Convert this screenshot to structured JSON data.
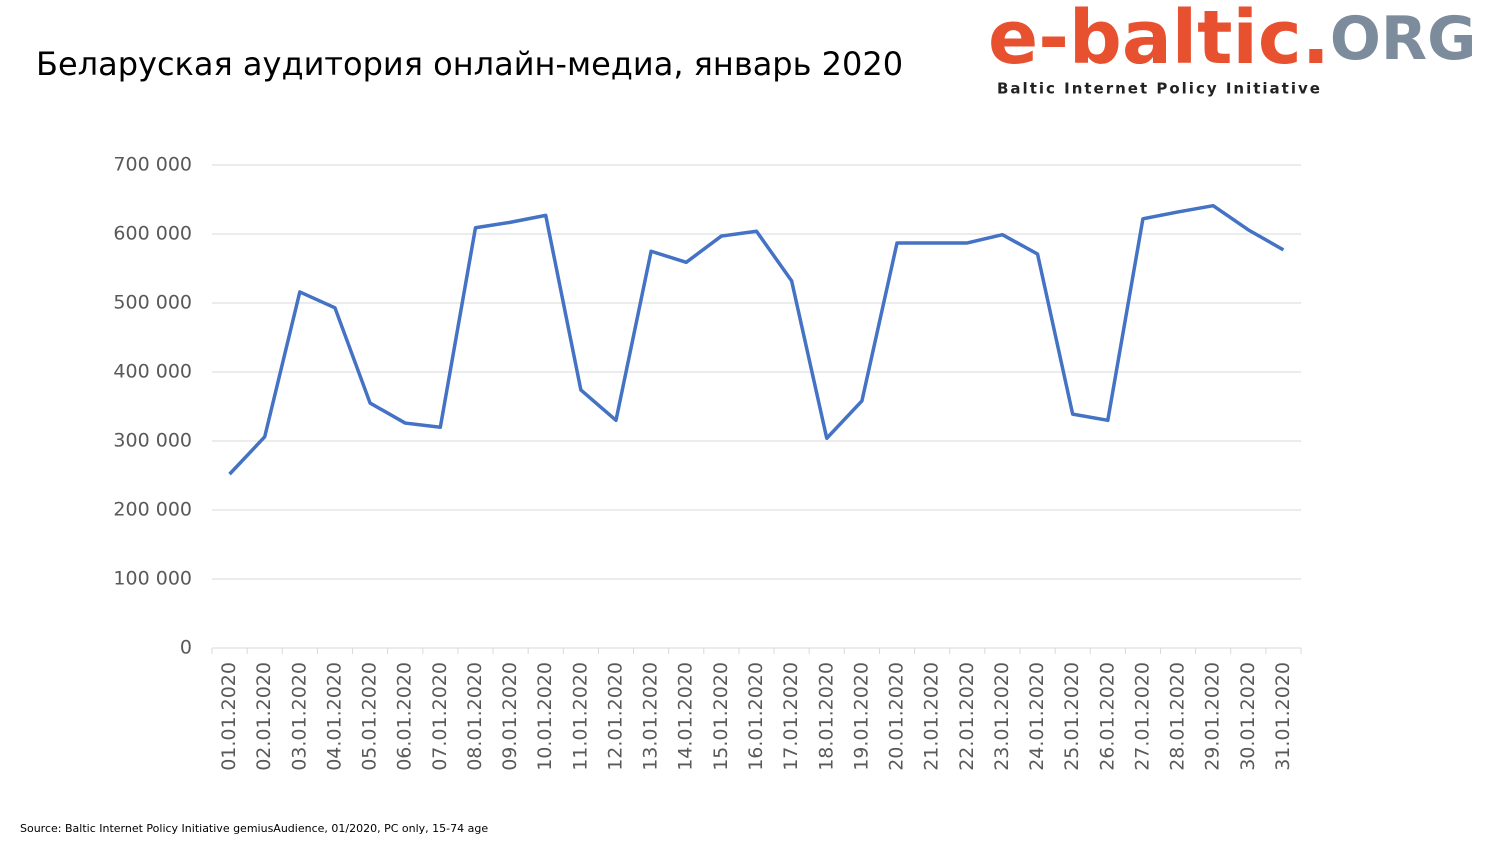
{
  "chart_data": {
    "type": "line",
    "title": "Беларуская аудитория онлайн-медиа, январь 2020",
    "categories": [
      "01.01.2020",
      "02.01.2020",
      "03.01.2020",
      "04.01.2020",
      "05.01.2020",
      "06.01.2020",
      "07.01.2020",
      "08.01.2020",
      "09.01.2020",
      "10.01.2020",
      "11.01.2020",
      "12.01.2020",
      "13.01.2020",
      "14.01.2020",
      "15.01.2020",
      "16.01.2020",
      "17.01.2020",
      "18.01.2020",
      "19.01.2020",
      "20.01.2020",
      "21.01.2020",
      "22.01.2020",
      "23.01.2020",
      "24.01.2020",
      "25.01.2020",
      "26.01.2020",
      "27.01.2020",
      "28.01.2020",
      "29.01.2020",
      "30.01.2020",
      "31.01.2020"
    ],
    "values": [
      252000,
      306000,
      516000,
      493000,
      355000,
      326000,
      320000,
      609000,
      617000,
      627000,
      374000,
      330000,
      575000,
      559000,
      597000,
      604000,
      532000,
      304000,
      358000,
      587000,
      587000,
      587000,
      599000,
      571000,
      339000,
      330000,
      622000,
      632000,
      641000,
      606000,
      577000
    ],
    "color": "#4472c4",
    "ylim": [
      0,
      700000
    ],
    "yticks": [
      0,
      {
        "value": 100000,
        "label": "100 000"
      },
      {
        "value": 200000,
        "label": "200 000"
      },
      {
        "value": 300000,
        "label": "300 000"
      },
      {
        "value": 400000,
        "label": "400 000"
      },
      {
        "value": 500000,
        "label": "500 000"
      },
      {
        "value": 600000,
        "label": "600 000"
      },
      {
        "value": 700000,
        "label": "700 000"
      }
    ],
    "grid": true
  },
  "logo": {
    "name": "e-baltic.",
    "suffix": "ORG",
    "tagline": "Baltic Internet Policy Initiative"
  },
  "source": "Source: Baltic Internet Policy Initiative  gemiusAudience, 01/2020, PC only, 15-74 age"
}
